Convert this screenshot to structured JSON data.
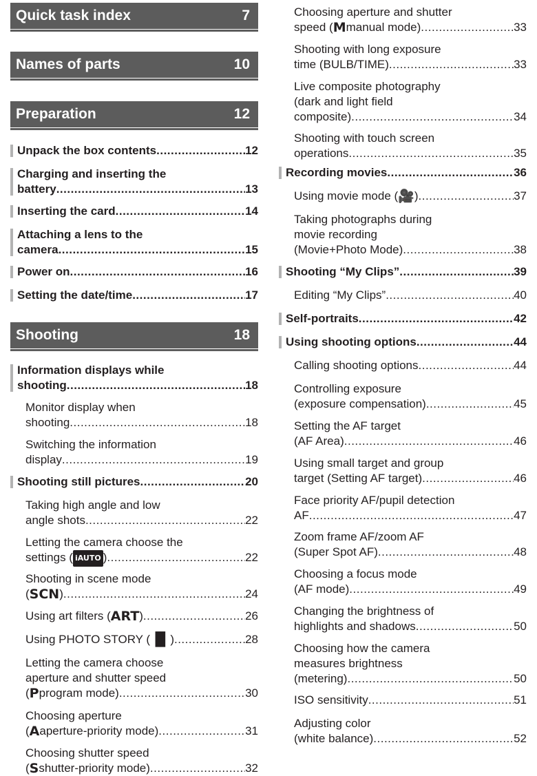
{
  "left": {
    "sections": [
      {
        "id": "quick",
        "title": "Quick task index",
        "page": "7"
      },
      {
        "id": "names",
        "title": "Names of parts",
        "page": "10"
      },
      {
        "id": "prep",
        "title": "Preparation",
        "page": "12",
        "entries": [
          {
            "lines": [
              "Unpack the box contents"
            ],
            "page": "12"
          },
          {
            "lines": [
              "Charging and inserting the",
              "battery"
            ],
            "page": "13"
          },
          {
            "lines": [
              "Inserting the card"
            ],
            "page": "14"
          },
          {
            "lines": [
              "Attaching a lens to the",
              "camera"
            ],
            "page": "15"
          },
          {
            "lines": [
              "Power on"
            ],
            "page": "16"
          },
          {
            "lines": [
              "Setting the date/time"
            ],
            "page": "17"
          }
        ]
      },
      {
        "id": "shoot",
        "title": "Shooting",
        "page": "18",
        "entries": [
          {
            "lines": [
              "Information displays while",
              "shooting"
            ],
            "page": "18"
          },
          {
            "lines": [
              "Monitor display when",
              "shooting"
            ],
            "page": "18"
          },
          {
            "lines": [
              "Switching the information",
              "display"
            ],
            "page": "19"
          },
          {
            "lines": [
              "Shooting still pictures"
            ],
            "page": "20"
          },
          {
            "lines": [
              "Taking high angle and low",
              "angle shots"
            ],
            "page": "22"
          },
          {
            "lines": [
              "Letting the camera choose the",
              "settings ("
            ],
            "icon": "iAUTO",
            "tail": ")",
            "page": "22"
          },
          {
            "lines": [
              "Shooting in scene mode",
              "("
            ],
            "icon": "SCN",
            "tail": ")",
            "page": "24"
          },
          {
            "lines": [
              "Using art filters ("
            ],
            "icon": "ART",
            "tail": ")",
            "page": "26"
          },
          {
            "lines": [
              "Using PHOTO STORY ("
            ],
            "icon": "▐▌",
            "tail": ")",
            "page": "28"
          },
          {
            "lines": [
              "Letting the camera choose",
              "aperture and shutter speed",
              "("
            ],
            "icon": "P",
            "tail": " program mode)",
            "page": "30"
          },
          {
            "lines": [
              "Choosing aperture",
              "("
            ],
            "icon": "A",
            "tail": " aperture-priority mode)",
            "page": "31"
          },
          {
            "lines": [
              "Choosing shutter speed",
              "("
            ],
            "icon": "S",
            "tail": " shutter-priority mode)",
            "page": "32"
          }
        ]
      }
    ]
  },
  "right": {
    "entries": [
      {
        "lines": [
          "Choosing aperture and shutter",
          "speed ("
        ],
        "icon": "M",
        "tail": " manual mode)",
        "page": "33"
      },
      {
        "lines": [
          "Shooting with long exposure",
          "time (BULB/TIME)"
        ],
        "page": "33"
      },
      {
        "lines": [
          "Live composite photography",
          "(dark and light field",
          "composite)"
        ],
        "page": "34"
      },
      {
        "lines": [
          "Shooting with touch screen",
          "operations"
        ],
        "page": "35"
      },
      {
        "lines": [
          "Recording movies"
        ],
        "page": "36"
      },
      {
        "lines": [
          "Using movie mode ("
        ],
        "icon": "🎥",
        "tail": ")",
        "page": "37"
      },
      {
        "lines": [
          "Taking photographs during",
          "movie recording",
          "(Movie+Photo Mode)"
        ],
        "page": "38"
      },
      {
        "lines": [
          "Shooting “My Clips”"
        ],
        "page": "39"
      },
      {
        "lines": [
          "Editing “My Clips”"
        ],
        "page": "40"
      },
      {
        "lines": [
          "Self-portraits"
        ],
        "page": "42"
      },
      {
        "lines": [
          "Using shooting options"
        ],
        "page": "44"
      },
      {
        "lines": [
          "Calling shooting options"
        ],
        "page": "44"
      },
      {
        "lines": [
          "Controlling exposure",
          "(exposure compensation)"
        ],
        "page": "45"
      },
      {
        "lines": [
          "Setting the AF target",
          "(AF Area)"
        ],
        "page": "46"
      },
      {
        "lines": [
          "Using small target and group",
          "target (Setting AF target)"
        ],
        "page": "46"
      },
      {
        "lines": [
          "Face priority AF/pupil detection",
          "AF"
        ],
        "page": "47"
      },
      {
        "lines": [
          "Zoom frame AF/zoom AF",
          "(Super Spot AF)"
        ],
        "page": "48"
      },
      {
        "lines": [
          "Choosing a focus mode",
          "(AF mode)"
        ],
        "page": "49"
      },
      {
        "lines": [
          "Changing the brightness of",
          "highlights and shadows"
        ],
        "page": "50"
      },
      {
        "lines": [
          "Choosing how the camera",
          "measures brightness",
          "(metering)"
        ],
        "page": "50"
      },
      {
        "lines": [
          "ISO sensitivity"
        ],
        "page": "51"
      },
      {
        "lines": [
          "Adjusting color",
          "(white balance)"
        ],
        "page": "52"
      }
    ]
  }
}
